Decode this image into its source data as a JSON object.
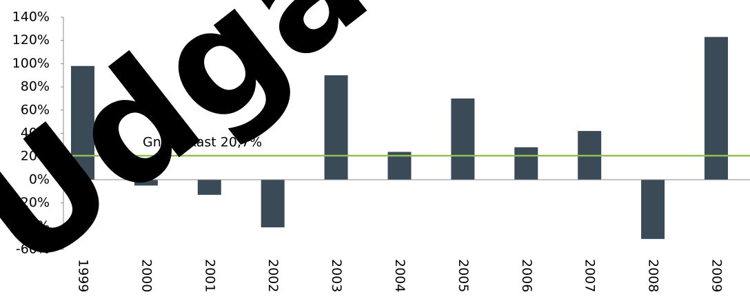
{
  "chart_data": {
    "type": "bar",
    "categories": [
      "1999",
      "2000",
      "2001",
      "2002",
      "2003",
      "2004",
      "2005",
      "2006",
      "2007",
      "2008",
      "2009"
    ],
    "values": [
      98,
      -5,
      -13,
      -41,
      90,
      24,
      70,
      28,
      42,
      -51,
      123
    ],
    "color": "#3b4a57",
    "ylim": [
      -60,
      140
    ],
    "yticks": [
      {
        "value": -60,
        "label": "-60%"
      },
      {
        "value": -40,
        "label": "-40%"
      },
      {
        "value": -20,
        "label": "-20%"
      },
      {
        "value": 0,
        "label": "0%"
      },
      {
        "value": 20,
        "label": "20%"
      },
      {
        "value": 40,
        "label": "40%"
      },
      {
        "value": 60,
        "label": "60%"
      },
      {
        "value": 80,
        "label": "80%"
      },
      {
        "value": 100,
        "label": "100%"
      },
      {
        "value": 120,
        "label": "120%"
      },
      {
        "value": 140,
        "label": "140%"
      }
    ],
    "average": {
      "value": 20.7,
      "label": "Gns. afkast 20,7%",
      "color": "#92c050"
    },
    "watermark": "Udgået"
  }
}
